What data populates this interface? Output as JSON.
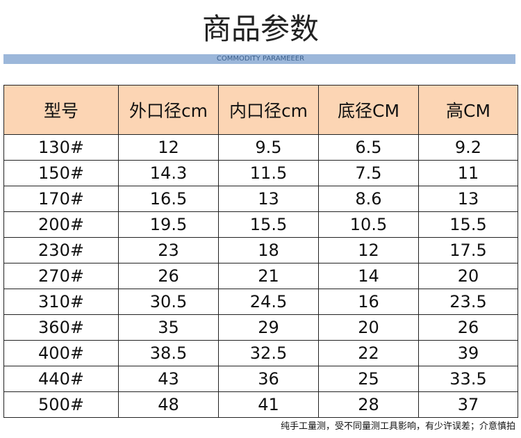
{
  "header": {
    "title": "商品参数",
    "subtitle": "COMMODITY PARAMEEER"
  },
  "table": {
    "columns": [
      "型号",
      "外口径cm",
      "内口径cm",
      "底径CM",
      "高CM"
    ],
    "rows": [
      [
        "130#",
        "12",
        "9.5",
        "6.5",
        "9.2"
      ],
      [
        "150#",
        "14.3",
        "11.5",
        "7.5",
        "11"
      ],
      [
        "170#",
        "16.5",
        "13",
        "8.6",
        "13"
      ],
      [
        "200#",
        "19.5",
        "15.5",
        "10.5",
        "15.5"
      ],
      [
        "230#",
        "23",
        "18",
        "12",
        "17.5"
      ],
      [
        "270#",
        "26",
        "21",
        "14",
        "20"
      ],
      [
        "310#",
        "30.5",
        "24.5",
        "16",
        "23.5"
      ],
      [
        "360#",
        "35",
        "29",
        "20",
        "26"
      ],
      [
        "400#",
        "38.5",
        "32.5",
        "22",
        "39"
      ],
      [
        "440#",
        "43",
        "36",
        "25",
        "33.5"
      ],
      [
        "500#",
        "48",
        "41",
        "28",
        "37"
      ]
    ]
  },
  "footer": {
    "note": "纯手工量测，受不同量测工具影响，有少许误差；介意慎拍"
  }
}
